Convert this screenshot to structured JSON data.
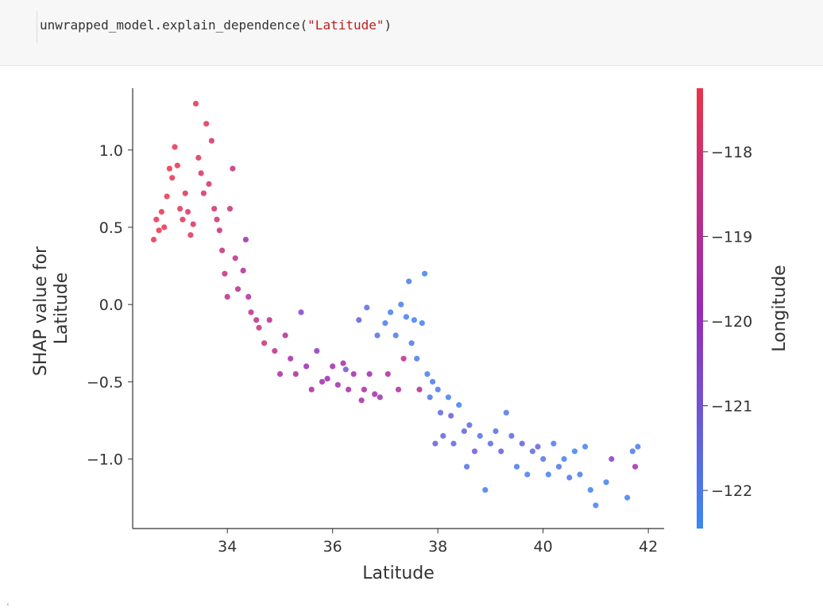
{
  "code_cell": {
    "object": "unwrapped_model",
    "dot": ".",
    "method": "explain_dependence",
    "open_paren": "(",
    "argument": "\"Latitude\"",
    "close_paren": ")"
  },
  "scroll_arrow_glyph": "‹",
  "chart_data": {
    "type": "scatter",
    "xlabel": "Latitude",
    "ylabel_lines": [
      "SHAP value for",
      "Latitude"
    ],
    "colorbar_label": "Longitude",
    "xlim": [
      32.2,
      42.3
    ],
    "ylim": [
      -1.45,
      1.4
    ],
    "x_ticks": [
      34,
      36,
      38,
      40,
      42
    ],
    "x_tick_labels": [
      "34",
      "36",
      "38",
      "40",
      "42"
    ],
    "y_ticks": [
      -1.0,
      -0.5,
      0.0,
      0.5,
      1.0
    ],
    "y_tick_labels": [
      "−1.0",
      "−0.5",
      "0.0",
      "0.5",
      "1.0"
    ],
    "color_range": [
      -122.45,
      -117.25
    ],
    "colorbar_ticks": [
      -122,
      -121,
      -120,
      -119,
      -118
    ],
    "colorbar_tick_labels": [
      "−122",
      "−121",
      "−120",
      "−119",
      "−118"
    ],
    "colors": {
      "low": "#3b88f5",
      "mid": "#9a2ab6",
      "high": "#e8334b",
      "point_alpha": 0.85
    },
    "grid": false,
    "series": [
      {
        "points": [
          [
            32.6,
            0.42,
            -117.3
          ],
          [
            32.65,
            0.55,
            -117.2
          ],
          [
            32.7,
            0.48,
            -117.3
          ],
          [
            32.75,
            0.6,
            -117.25
          ],
          [
            32.8,
            0.5,
            -117.2
          ],
          [
            32.85,
            0.7,
            -117.3
          ],
          [
            32.9,
            0.88,
            -117.25
          ],
          [
            32.95,
            0.82,
            -117.3
          ],
          [
            33.0,
            1.02,
            -117.4
          ],
          [
            33.05,
            0.9,
            -117.35
          ],
          [
            33.1,
            0.62,
            -117.5
          ],
          [
            33.15,
            0.55,
            -117.4
          ],
          [
            33.2,
            0.72,
            -117.6
          ],
          [
            33.25,
            0.6,
            -117.7
          ],
          [
            33.3,
            0.45,
            -117.5
          ],
          [
            33.35,
            0.52,
            -117.8
          ],
          [
            33.4,
            1.3,
            -117.4
          ],
          [
            33.45,
            0.95,
            -117.6
          ],
          [
            33.5,
            0.85,
            -117.8
          ],
          [
            33.55,
            0.72,
            -117.9
          ],
          [
            33.6,
            1.17,
            -117.5
          ],
          [
            33.65,
            0.78,
            -118.0
          ],
          [
            33.7,
            1.06,
            -117.9
          ],
          [
            33.75,
            0.62,
            -118.2
          ],
          [
            33.8,
            0.55,
            -118.2
          ],
          [
            33.85,
            0.48,
            -118.4
          ],
          [
            33.9,
            0.35,
            -118.5
          ],
          [
            33.95,
            0.2,
            -118.6
          ],
          [
            34.0,
            0.05,
            -118.7
          ],
          [
            34.05,
            0.62,
            -118.3
          ],
          [
            34.1,
            0.88,
            -118.4
          ],
          [
            34.15,
            0.3,
            -118.7
          ],
          [
            34.2,
            0.1,
            -118.9
          ],
          [
            34.3,
            0.22,
            -119.2
          ],
          [
            34.35,
            0.42,
            -119.5
          ],
          [
            34.4,
            0.05,
            -119.3
          ],
          [
            34.45,
            -0.05,
            -118.7
          ],
          [
            34.55,
            -0.1,
            -118.8
          ],
          [
            34.6,
            -0.15,
            -118.5
          ],
          [
            34.7,
            -0.25,
            -118.3
          ],
          [
            34.8,
            -0.1,
            -118.9
          ],
          [
            34.9,
            -0.3,
            -118.6
          ],
          [
            35.0,
            -0.45,
            -119.4
          ],
          [
            35.1,
            -0.2,
            -119.0
          ],
          [
            35.2,
            -0.35,
            -119.5
          ],
          [
            35.3,
            -0.45,
            -119.2
          ],
          [
            35.4,
            -0.05,
            -120.6
          ],
          [
            35.5,
            -0.4,
            -119.8
          ],
          [
            35.6,
            -0.55,
            -119.4
          ],
          [
            35.7,
            -0.3,
            -120.2
          ],
          [
            35.8,
            -0.5,
            -119.5
          ],
          [
            35.9,
            -0.48,
            -119.8
          ],
          [
            36.0,
            -0.4,
            -119.6
          ],
          [
            36.1,
            -0.52,
            -119.6
          ],
          [
            36.2,
            -0.38,
            -119.5
          ],
          [
            36.25,
            -0.42,
            -121.0
          ],
          [
            36.3,
            -0.55,
            -119.4
          ],
          [
            36.4,
            -0.45,
            -119.6
          ],
          [
            36.5,
            -0.1,
            -121.4
          ],
          [
            36.55,
            -0.62,
            -119.5
          ],
          [
            36.6,
            -0.55,
            -119.4
          ],
          [
            36.65,
            -0.02,
            -121.6
          ],
          [
            36.7,
            -0.45,
            -119.8
          ],
          [
            36.8,
            -0.58,
            -119.5
          ],
          [
            36.85,
            -0.2,
            -121.8
          ],
          [
            36.9,
            -0.6,
            -119.6
          ],
          [
            37.0,
            -0.12,
            -122.1
          ],
          [
            37.05,
            -0.45,
            -119.3
          ],
          [
            37.1,
            -0.05,
            -122.2
          ],
          [
            37.2,
            -0.2,
            -122.0
          ],
          [
            37.25,
            -0.55,
            -119.3
          ],
          [
            37.3,
            0.0,
            -122.1
          ],
          [
            37.35,
            -0.35,
            -118.6
          ],
          [
            37.4,
            -0.08,
            -122.2
          ],
          [
            37.45,
            0.15,
            -122.0
          ],
          [
            37.5,
            -0.25,
            -122.0
          ],
          [
            37.55,
            -0.1,
            -122.3
          ],
          [
            37.6,
            -0.35,
            -122.1
          ],
          [
            37.65,
            -0.55,
            -119.2
          ],
          [
            37.7,
            -0.12,
            -122.2
          ],
          [
            37.75,
            0.2,
            -122.3
          ],
          [
            37.8,
            -0.45,
            -122.2
          ],
          [
            37.85,
            -0.6,
            -121.9
          ],
          [
            37.9,
            -0.5,
            -122.0
          ],
          [
            37.95,
            -0.9,
            -121.3
          ],
          [
            38.0,
            -0.55,
            -122.0
          ],
          [
            38.05,
            -0.7,
            -121.6
          ],
          [
            38.1,
            -0.85,
            -121.5
          ],
          [
            38.2,
            -0.6,
            -122.2
          ],
          [
            38.25,
            -0.72,
            -121.3
          ],
          [
            38.3,
            -0.9,
            -121.5
          ],
          [
            38.4,
            -0.65,
            -122.3
          ],
          [
            38.5,
            -0.82,
            -121.4
          ],
          [
            38.55,
            -1.05,
            -121.8
          ],
          [
            38.6,
            -0.78,
            -121.6
          ],
          [
            38.7,
            -0.95,
            -121.2
          ],
          [
            38.8,
            -0.85,
            -121.9
          ],
          [
            38.9,
            -1.2,
            -122.1
          ],
          [
            39.0,
            -0.9,
            -121.7
          ],
          [
            39.1,
            -0.82,
            -121.8
          ],
          [
            39.2,
            -0.95,
            -121.3
          ],
          [
            39.3,
            -0.7,
            -122.0
          ],
          [
            39.4,
            -0.85,
            -121.6
          ],
          [
            39.5,
            -1.05,
            -122.0
          ],
          [
            39.6,
            -0.9,
            -121.4
          ],
          [
            39.7,
            -1.1,
            -122.1
          ],
          [
            39.8,
            -0.95,
            -121.5
          ],
          [
            39.9,
            -0.92,
            -121.4
          ],
          [
            40.0,
            -1.0,
            -121.9
          ],
          [
            40.1,
            -1.1,
            -122.3
          ],
          [
            40.2,
            -0.9,
            -122.0
          ],
          [
            40.3,
            -1.05,
            -121.9
          ],
          [
            40.4,
            -1.0,
            -122.2
          ],
          [
            40.5,
            -1.12,
            -122.0
          ],
          [
            40.6,
            -0.95,
            -122.3
          ],
          [
            40.7,
            -1.1,
            -122.1
          ],
          [
            40.8,
            -0.92,
            -122.2
          ],
          [
            40.9,
            -1.2,
            -122.3
          ],
          [
            41.0,
            -1.3,
            -122.3
          ],
          [
            41.2,
            -1.15,
            -122.2
          ],
          [
            41.3,
            -1.0,
            -120.4
          ],
          [
            41.6,
            -1.25,
            -122.3
          ],
          [
            41.7,
            -0.95,
            -122.0
          ],
          [
            41.75,
            -1.05,
            -119.5
          ],
          [
            41.8,
            -0.92,
            -122.1
          ]
        ]
      }
    ]
  }
}
